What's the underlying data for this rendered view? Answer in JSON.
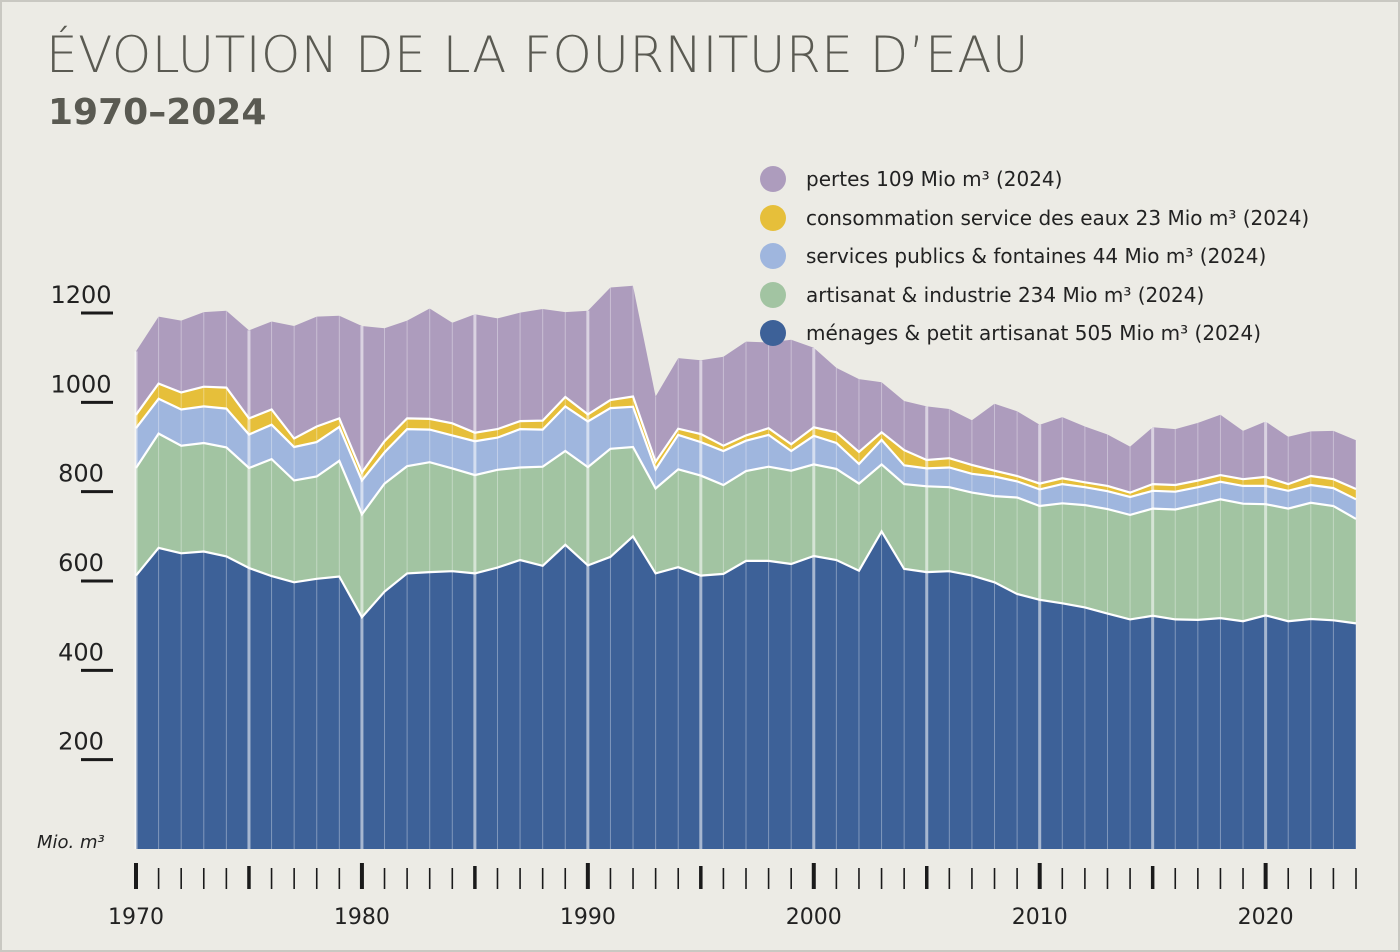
{
  "title": "ÉVOLUTION DE LA FOURNITURE D’EAU",
  "subtitle": "1970–2024",
  "chart_data": {
    "type": "area",
    "stacked": true,
    "unit_label": "Mio. m³",
    "ylim": [
      0,
      1200
    ],
    "y_ticks": [
      "200",
      "400",
      "600",
      "800",
      "1000",
      "1200"
    ],
    "x_tick_labels": [
      "1970",
      "1980",
      "1990",
      "2000",
      "2010",
      "2020"
    ],
    "x": [
      1970,
      1971,
      1972,
      1973,
      1974,
      1975,
      1976,
      1977,
      1978,
      1979,
      1980,
      1981,
      1982,
      1983,
      1984,
      1985,
      1986,
      1987,
      1988,
      1989,
      1990,
      1991,
      1992,
      1993,
      1994,
      1995,
      1996,
      1997,
      1998,
      1999,
      2000,
      2001,
      2002,
      2003,
      2004,
      2005,
      2006,
      2007,
      2008,
      2009,
      2010,
      2011,
      2012,
      2013,
      2014,
      2015,
      2016,
      2017,
      2018,
      2019,
      2020,
      2021,
      2022,
      2023,
      2024
    ],
    "series": [
      {
        "name": "ménages & petit artisanat 505 Mio m³ (2024)",
        "color": "#3d6198",
        "values": [
          612,
          674,
          662,
          666,
          655,
          629,
          611,
          597,
          605,
          610,
          519,
          576,
          617,
          620,
          622,
          617,
          630,
          647,
          634,
          681,
          635,
          654,
          700,
          617,
          631,
          612,
          616,
          645,
          645,
          638,
          656,
          647,
          623,
          711,
          627,
          620,
          622,
          612,
          597,
          571,
          558,
          550,
          541,
          527,
          514,
          522,
          514,
          513,
          517,
          510,
          523,
          510,
          515,
          512,
          505
        ]
      },
      {
        "name": "artisanat & industrie 234 Mio m³ (2024)",
        "color": "#a2c4a2",
        "values": [
          241,
          256,
          241,
          243,
          244,
          224,
          262,
          228,
          229,
          259,
          230,
          242,
          240,
          246,
          230,
          220,
          219,
          207,
          222,
          210,
          220,
          242,
          200,
          190,
          219,
          224,
          199,
          201,
          211,
          209,
          205,
          204,
          195,
          150,
          190,
          192,
          188,
          186,
          193,
          216,
          210,
          224,
          229,
          234,
          234,
          240,
          246,
          258,
          266,
          263,
          249,
          252,
          260,
          256,
          234
        ]
      },
      {
        "name": "services publics & fontaines 44 Mio m³ (2024)",
        "color": "#9fb6de",
        "values": [
          89,
          78,
          81,
          82,
          87,
          75,
          77,
          75,
          77,
          76,
          76,
          70,
          83,
          73,
          74,
          76,
          72,
          86,
          83,
          100,
          102,
          91,
          90,
          43,
          77,
          75,
          76,
          68,
          71,
          44,
          64,
          58,
          44,
          55,
          42,
          40,
          44,
          42,
          44,
          36,
          37,
          43,
          40,
          40,
          40,
          40,
          40,
          39,
          39,
          40,
          41,
          40,
          40,
          40,
          44
        ]
      },
      {
        "name": "consommation service des eaux 23 Mio m³ (2024)",
        "color": "#e6bf3a",
        "values": [
          30,
          34,
          38,
          44,
          47,
          36,
          34,
          19,
          35,
          19,
          18,
          25,
          24,
          24,
          27,
          19,
          19,
          18,
          20,
          21,
          16,
          18,
          23,
          17,
          14,
          18,
          12,
          12,
          15,
          15,
          19,
          24,
          27,
          17,
          34,
          19,
          21,
          20,
          13,
          12,
          13,
          13,
          11,
          12,
          10,
          15,
          15,
          15,
          15,
          15,
          20,
          15,
          20,
          20,
          23
        ]
      },
      {
        "name": "pertes 109 Mio m³ (2024)",
        "color": "#ad9cbd",
        "values": [
          142,
          150,
          161,
          167,
          172,
          197,
          197,
          252,
          246,
          230,
          328,
          253,
          219,
          247,
          225,
          265,
          248,
          243,
          250,
          190,
          232,
          252,
          248,
          146,
          158,
          165,
          199,
          210,
          192,
          234,
          178,
          144,
          163,
          112,
          110,
          120,
          110,
          100,
          150,
          145,
          132,
          137,
          125,
          115,
          103,
          127,
          125,
          129,
          135,
          108,
          124,
          106,
          100,
          108,
          109
        ]
      }
    ]
  }
}
